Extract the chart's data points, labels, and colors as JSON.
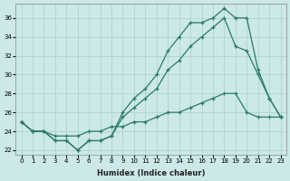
{
  "xlabel": "Humidex (Indice chaleur)",
  "xlim": [
    -0.5,
    23.5
  ],
  "ylim": [
    21.5,
    37.5
  ],
  "yticks": [
    22,
    24,
    26,
    28,
    30,
    32,
    34,
    36
  ],
  "xticks": [
    0,
    1,
    2,
    3,
    4,
    5,
    6,
    7,
    8,
    9,
    10,
    11,
    12,
    13,
    14,
    15,
    16,
    17,
    18,
    19,
    20,
    21,
    22,
    23
  ],
  "bg_color": "#cce8e8",
  "line_color": "#2a7a6a",
  "grid_color": "#aacfcf",
  "line_top": [
    25.0,
    24.0,
    24.0,
    23.0,
    23.0,
    22.0,
    23.0,
    23.0,
    23.5,
    26.0,
    27.5,
    28.5,
    30.0,
    32.5,
    34.0,
    35.5,
    35.5,
    36.0,
    37.0,
    36.0,
    36.0,
    30.5,
    27.5,
    25.5
  ],
  "line_mid": [
    25.0,
    24.0,
    24.0,
    23.0,
    23.0,
    22.0,
    23.0,
    23.0,
    23.5,
    25.5,
    26.5,
    27.5,
    28.5,
    30.5,
    31.5,
    33.0,
    34.0,
    35.0,
    36.0,
    33.0,
    32.5,
    30.0,
    27.5,
    25.5
  ],
  "line_bot": [
    25.0,
    24.0,
    24.0,
    23.5,
    23.5,
    23.5,
    24.0,
    24.0,
    24.5,
    24.5,
    25.0,
    25.0,
    25.5,
    26.0,
    26.0,
    26.5,
    27.0,
    27.5,
    28.0,
    28.0,
    26.0,
    25.5,
    25.5,
    25.5
  ]
}
